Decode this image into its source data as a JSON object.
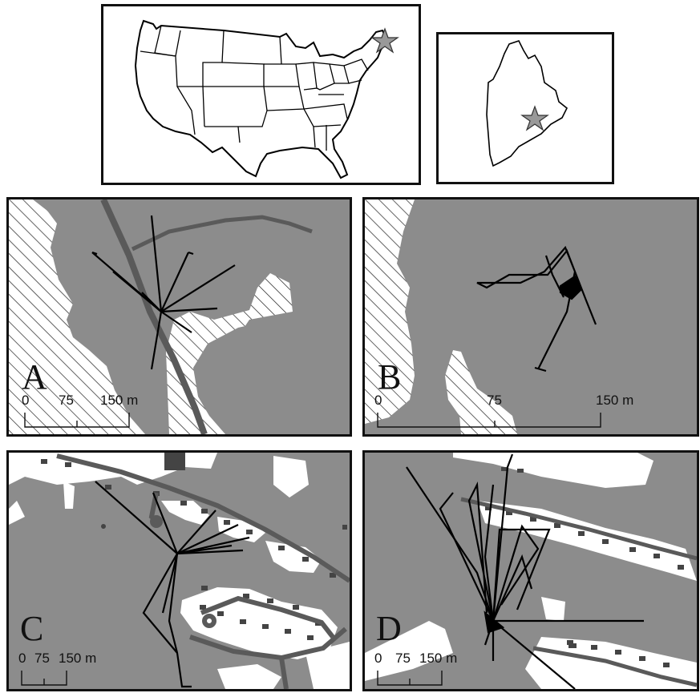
{
  "inset_maps": {
    "usa": {
      "star_location": "Maine"
    },
    "maine": {
      "star_location": "central Maine"
    }
  },
  "panels": [
    {
      "id": "A",
      "letter": "A",
      "scale": {
        "t0": "0",
        "t1": "75",
        "t2": "150 m"
      }
    },
    {
      "id": "B",
      "letter": "B",
      "scale": {
        "t0": "0",
        "t1": "75",
        "t2": "150 m"
      }
    },
    {
      "id": "C",
      "letter": "C",
      "scale": {
        "t0": "0",
        "t1": "75",
        "t2": "150 m"
      }
    },
    {
      "id": "D",
      "letter": "D",
      "scale": {
        "t0": "0",
        "t1": "75",
        "t2": "150 m"
      }
    }
  ],
  "legend_semantics": {
    "forest": "gray fill",
    "open_water_or_wetland": "diagonal hatch",
    "developed": "white fill",
    "buildings": "dark gray rectangles",
    "roads": "dark gray lines",
    "movement_paths": "black lines"
  },
  "colors": {
    "forest": "#8c8c8c",
    "road": "#5a5a5a",
    "building": "#444444",
    "track": "#000000",
    "star": "#999999"
  }
}
